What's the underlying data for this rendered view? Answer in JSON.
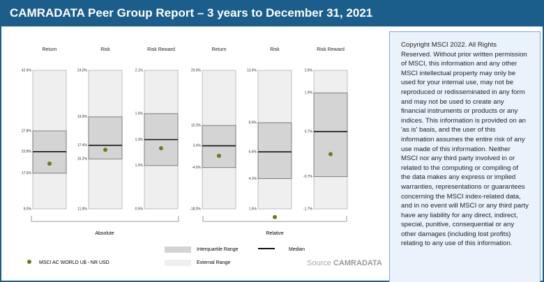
{
  "header": {
    "title": "CAMRADATA Peer Group Report – 3 years to December 31, 2021"
  },
  "chart_data": [
    {
      "type": "range",
      "title": "Return",
      "color": "#6b7a1e",
      "value": 19.9,
      "ylim": [
        9.0,
        42.4
      ],
      "yticks": [
        {
          "value": 42.4,
          "label": "42.4%"
        },
        {
          "value": 27.8,
          "label": "27.8%"
        },
        {
          "value": 22.8,
          "label": "22.8%"
        },
        {
          "value": 17.6,
          "label": "17.6%"
        },
        {
          "value": 9.0,
          "label": "9.0%"
        }
      ]
    },
    {
      "type": "range",
      "title": "Risk",
      "color": "#6b7a1e",
      "value": 17.0,
      "ylim": [
        11.8,
        24.0
      ],
      "yticks": [
        {
          "value": 24.0,
          "label": "24.0%"
        },
        {
          "value": 19.9,
          "label": "19.9%"
        },
        {
          "value": 17.4,
          "label": "17.4%"
        },
        {
          "value": 16.2,
          "label": "16.2%"
        },
        {
          "value": 11.8,
          "label": "11.8%"
        }
      ]
    },
    {
      "type": "range",
      "title": "Risk Reward",
      "color": "#6b7a1e",
      "value": 1.2,
      "ylim": [
        0.5,
        2.1
      ],
      "yticks": [
        {
          "value": 2.1,
          "label": "2.1%"
        },
        {
          "value": 1.6,
          "label": "1.6%"
        },
        {
          "value": 1.3,
          "label": "1.3%"
        },
        {
          "value": 1.0,
          "label": "1.0%"
        },
        {
          "value": 0.5,
          "label": "0.5%"
        }
      ]
    },
    {
      "type": "range",
      "title": "Return",
      "color": "#6b7a1e",
      "value": 0.0,
      "ylim": [
        -18.0,
        29.0
      ],
      "yticks": [
        {
          "value": 29.0,
          "label": "29.0%"
        },
        {
          "value": 10.3,
          "label": "10.3%"
        },
        {
          "value": 3.4,
          "label": "3.4%"
        },
        {
          "value": -4.0,
          "label": "-4.0%"
        },
        {
          "value": -18.0,
          "label": "-18.0%"
        }
      ]
    },
    {
      "type": "range",
      "title": "Risk",
      "color": "#6b7a1e",
      "value": 0.8,
      "ylim": [
        1.5,
        13.4
      ],
      "yticks": [
        {
          "value": 13.4,
          "label": "13.4%"
        },
        {
          "value": 8.9,
          "label": "8.9%"
        },
        {
          "value": 6.4,
          "label": "6.4%"
        },
        {
          "value": 4.1,
          "label": "4.1%"
        },
        {
          "value": 1.5,
          "label": "1.5%"
        }
      ]
    },
    {
      "type": "range",
      "title": "Risk Reward",
      "color": "#6b7a1e",
      "value": 0.0,
      "ylim": [
        -1.7,
        2.6
      ],
      "yticks": [
        {
          "value": 2.6,
          "label": "2.6%"
        },
        {
          "value": 1.9,
          "label": "1.9%"
        },
        {
          "value": 0.7,
          "label": "0.7%"
        },
        {
          "value": -0.7,
          "label": "-0.7%"
        },
        {
          "value": -1.7,
          "label": "-1.7%"
        }
      ]
    }
  ],
  "groups": [
    "Absolute",
    "Relative"
  ],
  "legend": {
    "marker": "MSCI AC WORLD U$ - NR USD",
    "iqr": "Interquartile Range",
    "external": "External Range",
    "median": "Median"
  },
  "source": {
    "prefix": "Source",
    "name": "CAMRADATA"
  },
  "disclaimer": "Copyright MSCI 2022.  All Rights Reserved. Without prior written permission of MSCI, this information and any other MSCI intellectual property may only be used for your internal use, may not be reproduced or redisseminated in any form and may not be used to create any financial instruments or products or any indices. This information is provided on an 'as is' basis, and the user of this information assumes the entire risk of any use made of this information. Neither MSCI nor any third party involved in or related to the computing or compiling of the data makes any express or implied warranties, representations or guarantees concerning the MSCI index-related data, and in no event will MSCI or any third party have any liability for any direct, indirect, special, punitive, consequential or any other damages (including lost profits) relating to any use of this information."
}
